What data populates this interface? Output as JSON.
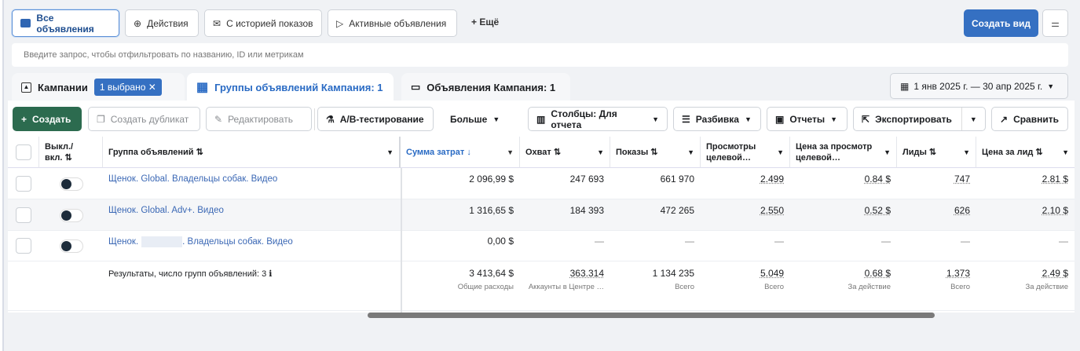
{
  "views": [
    {
      "label": "Все объявления",
      "icon": "folder-icon",
      "active": true
    },
    {
      "label": "Действия",
      "icon": "arrow-up-circle-icon"
    },
    {
      "label": "С историей показов",
      "icon": "envelope-icon"
    },
    {
      "label": "Активные объявления",
      "icon": "play-icon"
    }
  ],
  "more_views": "Ещё",
  "create_view": "Создать вид",
  "search_placeholder": "Введите запрос, чтобы отфильтровать по названию, ID или метрикам",
  "tabs": {
    "campaigns": "Кампании",
    "selected_badge": "1 выбрано",
    "adsets": "Группы объявлений Кампания: 1",
    "ads": "Объявления Кампания: 1"
  },
  "date_range": "1 янв 2025 г. — 30 апр 2025 г.",
  "toolbar": {
    "create": "Создать",
    "duplicate": "Создать дубликат",
    "edit": "Редактировать",
    "ab": "A/B-тестирование",
    "more": "Больше",
    "columns": "Столбцы: Для отчета",
    "breakdown": "Разбивка",
    "reports": "Отчеты",
    "export": "Экспортировать",
    "compare": "Сравнить"
  },
  "columns": {
    "toggle": "Выкл./ вкл. ⇅",
    "name": "Группа объявлений ⇅",
    "spend": "Сумма затрат ↓",
    "reach": "Охват ⇅",
    "impressions": "Показы ⇅",
    "views": "Просмотры целевой…",
    "cpv": "Цена за просмотр целевой…",
    "leads": "Лиды ⇅",
    "cpl": "Цена за лид ⇅"
  },
  "rows": [
    {
      "name": "Щенок. Global. Владельцы собак. Видео",
      "spend": "2 096,99 $",
      "reach": "247 693",
      "impressions": "661 970",
      "views": "2.499",
      "cpv": "0.84 $",
      "leads": "747",
      "cpl": "2.81 $"
    },
    {
      "name": "Щенок. Global. Adv+. Видео",
      "spend": "1 316,65 $",
      "reach": "184 393",
      "impressions": "472 265",
      "views": "2.550",
      "cpv": "0.52 $",
      "leads": "626",
      "cpl": "2.10 $"
    },
    {
      "name_prefix": "Щенок.",
      "name_suffix": ". Владельцы собак. Видео",
      "spend": "0,00 $",
      "reach": "—",
      "impressions": "—",
      "views": "—",
      "cpv": "—",
      "leads": "—",
      "cpl": "—"
    }
  ],
  "summary": {
    "label": "Результаты, число групп объявлений: 3",
    "spend": "3 413,64 $",
    "spend_sub": "Общие расходы",
    "reach": "363.314",
    "reach_sub": "Аккаунты в Центре …",
    "impressions": "1 134 235",
    "impressions_sub": "Всего",
    "views": "5.049",
    "views_sub": "Всего",
    "cpv": "0.68 $",
    "cpv_sub": "За действие",
    "leads": "1.373",
    "leads_sub": "Всего",
    "cpl": "2.49 $",
    "cpl_sub": "За действие"
  },
  "colors": {
    "primary": "#3570c2",
    "create": "#2c6b4f",
    "link": "#3b68b5"
  }
}
